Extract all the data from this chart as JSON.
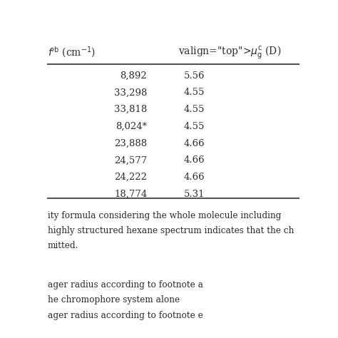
{
  "col1_values": [
    "8,892",
    "33,298",
    "33,818",
    "8,024*",
    "23,888",
    "24,577",
    "24,222",
    "18,774"
  ],
  "col2_values": [
    "5.56",
    "4.55",
    "4.55",
    "4.55",
    "4.66",
    "4.66",
    "4.66",
    "5.31"
  ],
  "footnote_lines": [
    "ity formula considering the whole molecule including",
    "highly structured hexane spectrum indicates that the ch",
    "mitted.",
    "",
    "ager radius according to footnote a",
    "he chromophore system alone",
    "ager radius according to footnote e"
  ],
  "bg_color": "#ffffff",
  "text_color": "#2b2b2b",
  "line_color": "#555555",
  "font_size": 9.5,
  "header_font_size": 10.0
}
